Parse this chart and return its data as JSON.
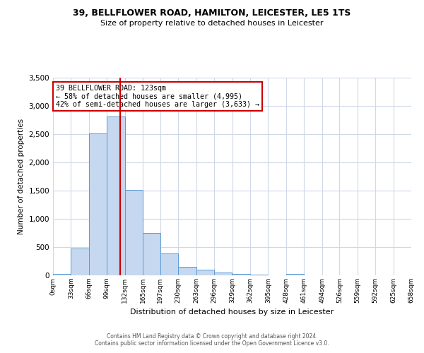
{
  "title1": "39, BELLFLOWER ROAD, HAMILTON, LEICESTER, LE5 1TS",
  "title2": "Size of property relative to detached houses in Leicester",
  "xlabel": "Distribution of detached houses by size in Leicester",
  "ylabel": "Number of detached properties",
  "bin_edges": [
    0,
    33,
    66,
    99,
    132,
    165,
    197,
    230,
    263,
    296,
    329,
    362,
    395,
    428,
    461,
    494,
    526,
    559,
    592,
    625,
    658
  ],
  "bar_values": [
    30,
    480,
    2510,
    2810,
    1510,
    750,
    390,
    155,
    100,
    55,
    25,
    10,
    5,
    30,
    5,
    5,
    5,
    5,
    5,
    5
  ],
  "bar_color": "#c5d8f0",
  "bar_edge_color": "#5b9bd5",
  "vline_x": 123,
  "vline_color": "#cc0000",
  "annotation_title": "39 BELLFLOWER ROAD: 123sqm",
  "annotation_line1": "← 58% of detached houses are smaller (4,995)",
  "annotation_line2": "42% of semi-detached houses are larger (3,633) →",
  "annotation_box_color": "#ffffff",
  "annotation_box_edge": "#cc0000",
  "ylim": [
    0,
    3500
  ],
  "yticks": [
    0,
    500,
    1000,
    1500,
    2000,
    2500,
    3000,
    3500
  ],
  "footer1": "Contains HM Land Registry data © Crown copyright and database right 2024.",
  "footer2": "Contains public sector information licensed under the Open Government Licence v3.0.",
  "bg_color": "#ffffff",
  "grid_color": "#d0d8e8",
  "tick_labels": [
    "0sqm",
    "33sqm",
    "66sqm",
    "99sqm",
    "132sqm",
    "165sqm",
    "197sqm",
    "230sqm",
    "263sqm",
    "296sqm",
    "329sqm",
    "362sqm",
    "395sqm",
    "428sqm",
    "461sqm",
    "494sqm",
    "526sqm",
    "559sqm",
    "592sqm",
    "625sqm",
    "658sqm"
  ]
}
